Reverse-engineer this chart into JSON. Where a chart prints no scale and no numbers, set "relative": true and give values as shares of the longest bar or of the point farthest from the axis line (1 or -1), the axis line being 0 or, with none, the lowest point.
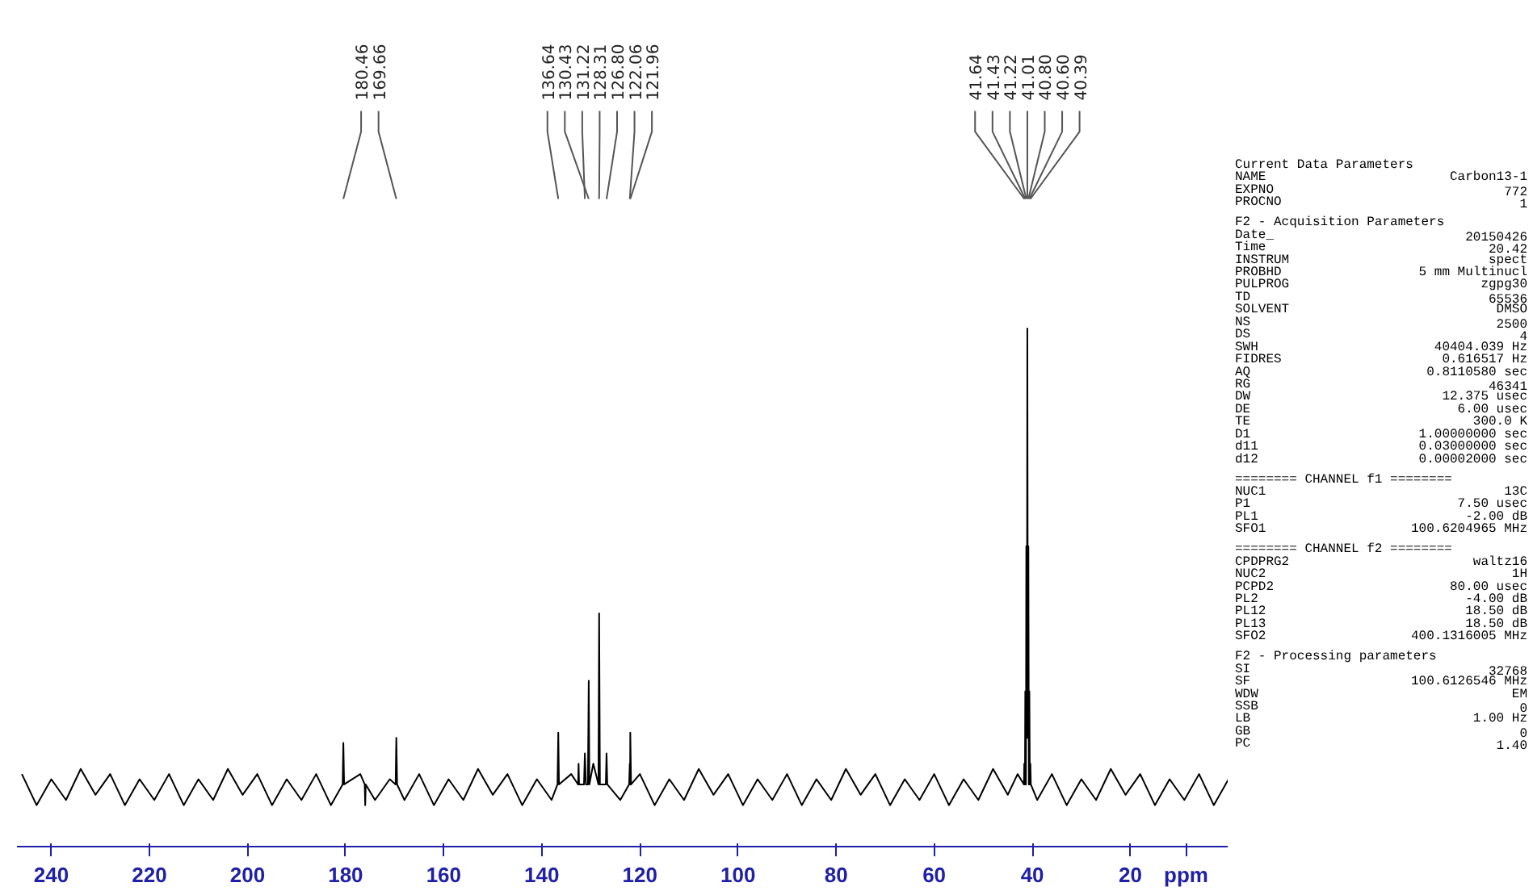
{
  "chart_data": {
    "type": "line",
    "relative": true,
    "xlabel": "ppm",
    "tick_labels": "x",
    "grid": false,
    "marker": "none",
    "line_style": "solid",
    "xlim": [
      247,
      0
    ],
    "xticks": [
      240,
      220,
      200,
      180,
      160,
      140,
      120,
      100,
      80,
      60,
      40,
      20
    ],
    "x": [
      246,
      243,
      240,
      237,
      234,
      231,
      228,
      225,
      222,
      219,
      216,
      213,
      210,
      207,
      204,
      201,
      198,
      195,
      192,
      189,
      186,
      183,
      180.6,
      180.46,
      180.3,
      177,
      176.1,
      176,
      175.9,
      174,
      171,
      169.8,
      169.66,
      169.5,
      168,
      165,
      162,
      159,
      156,
      153,
      150,
      147,
      144,
      141,
      138,
      136.8,
      136.64,
      136.5,
      134,
      132.6,
      132.5,
      132.4,
      131.4,
      131.22,
      131.0,
      130.6,
      130.43,
      130.3,
      129.5,
      128.45,
      128.31,
      128.15,
      126.95,
      126.8,
      126.65,
      124,
      122.2,
      122.06,
      122.0,
      121.96,
      121.8,
      120,
      117,
      114,
      111,
      108,
      105,
      102,
      99,
      96,
      93,
      90,
      87,
      84,
      81,
      78,
      75,
      72,
      69,
      66,
      63,
      60,
      57,
      54,
      51,
      48,
      45,
      43,
      41.7,
      41.64,
      41.5,
      41.43,
      41.3,
      41.22,
      41.1,
      41.01,
      40.9,
      40.8,
      40.7,
      40.6,
      40.5,
      40.39,
      40.3,
      39,
      36,
      33,
      30,
      27,
      24,
      21,
      18,
      15,
      12,
      9,
      6,
      3,
      0
    ],
    "series": [
      {
        "color": "#000000",
        "values": [
          0.14,
          0.08,
          0.13,
          0.09,
          0.15,
          0.1,
          0.14,
          0.08,
          0.13,
          0.09,
          0.14,
          0.08,
          0.13,
          0.09,
          0.15,
          0.1,
          0.14,
          0.08,
          0.13,
          0.09,
          0.14,
          0.08,
          0.12,
          0.2,
          0.12,
          0.14,
          0.12,
          0.08,
          0.12,
          0.09,
          0.13,
          0.12,
          0.21,
          0.12,
          0.09,
          0.14,
          0.08,
          0.13,
          0.09,
          0.15,
          0.1,
          0.14,
          0.08,
          0.13,
          0.09,
          0.12,
          0.22,
          0.12,
          0.14,
          0.12,
          0.16,
          0.12,
          0.12,
          0.18,
          0.12,
          0.12,
          0.32,
          0.12,
          0.16,
          0.12,
          0.45,
          0.12,
          0.12,
          0.18,
          0.12,
          0.09,
          0.12,
          0.16,
          0.12,
          0.22,
          0.12,
          0.14,
          0.08,
          0.13,
          0.09,
          0.15,
          0.1,
          0.14,
          0.08,
          0.13,
          0.09,
          0.14,
          0.08,
          0.13,
          0.09,
          0.15,
          0.1,
          0.14,
          0.08,
          0.13,
          0.09,
          0.14,
          0.08,
          0.13,
          0.09,
          0.15,
          0.1,
          0.14,
          0.12,
          0.16,
          0.12,
          0.3,
          0.12,
          0.58,
          0.21,
          1,
          0.21,
          0.58,
          0.12,
          0.3,
          0.12,
          0.16,
          0.12,
          0.09,
          0.14,
          0.08,
          0.13,
          0.09,
          0.15,
          0.1,
          0.14,
          0.08,
          0.13,
          0.09,
          0.14,
          0.08,
          0.13
        ]
      }
    ],
    "annotations": [
      {
        "text": "180.46",
        "x": 180.46
      },
      {
        "text": "169.66",
        "x": 169.66
      },
      {
        "text": "136.64",
        "x": 136.64
      },
      {
        "text": "130.43",
        "x": 130.43
      },
      {
        "text": "131.22",
        "x": 131.22
      },
      {
        "text": "128.31",
        "x": 128.31
      },
      {
        "text": "126.80",
        "x": 126.8
      },
      {
        "text": "122.06",
        "x": 122.06
      },
      {
        "text": "121.96",
        "x": 121.96
      },
      {
        "text": "41.64",
        "x": 41.64
      },
      {
        "text": "41.43",
        "x": 41.43
      },
      {
        "text": "41.22",
        "x": 41.22
      },
      {
        "text": "41.01",
        "x": 41.01
      },
      {
        "text": "40.80",
        "x": 40.8
      },
      {
        "text": "40.60",
        "x": 40.6
      },
      {
        "text": "40.39",
        "x": 40.39
      },
      "Current Data Parameters",
      "NAME  Carbon13-1",
      "EXPNO  772",
      "PROCNO  1",
      "F2 - Acquisition Parameters",
      "Date_  20150426",
      "Time  20.42",
      "INSTRUM  spect",
      "PROBHD  5 mm Multinucl",
      "PULPROG  zgpg30",
      "TD  65536",
      "SOLVENT  DMSO",
      "NS  2500",
      "DS  4",
      "SWH  40404.039 Hz",
      "FIDRES  0.616517 Hz",
      "AQ  0.8110580 sec",
      "RG  46341",
      "DW  12.375 usec",
      "DE  6.00 usec",
      "TE  300.0 K",
      "D1  1.00000000 sec",
      "d11  0.03000000 sec",
      "d12  0.00002000 sec",
      "======== CHANNEL f1 ========",
      "NUC1  13C",
      "P1  7.50 usec",
      "PL1  -2.00 dB",
      "SFO1  100.6204965 MHz",
      "======== CHANNEL f2 ========",
      "CPDPRG2  waltz16",
      "NUC2  1H",
      "PCPD2  80.00 usec",
      "PL2  -4.00 dB",
      "PL12  18.50 dB",
      "PL13  18.50 dB",
      "SFO2  400.1316005 MHz",
      "F2 - Processing parameters",
      "SI  32768",
      "SF  100.6126546 MHz",
      "WDW  EM",
      "SSB  0",
      "LB  1.00 Hz",
      "GB  0",
      "PC  1.40"
    ]
  }
}
